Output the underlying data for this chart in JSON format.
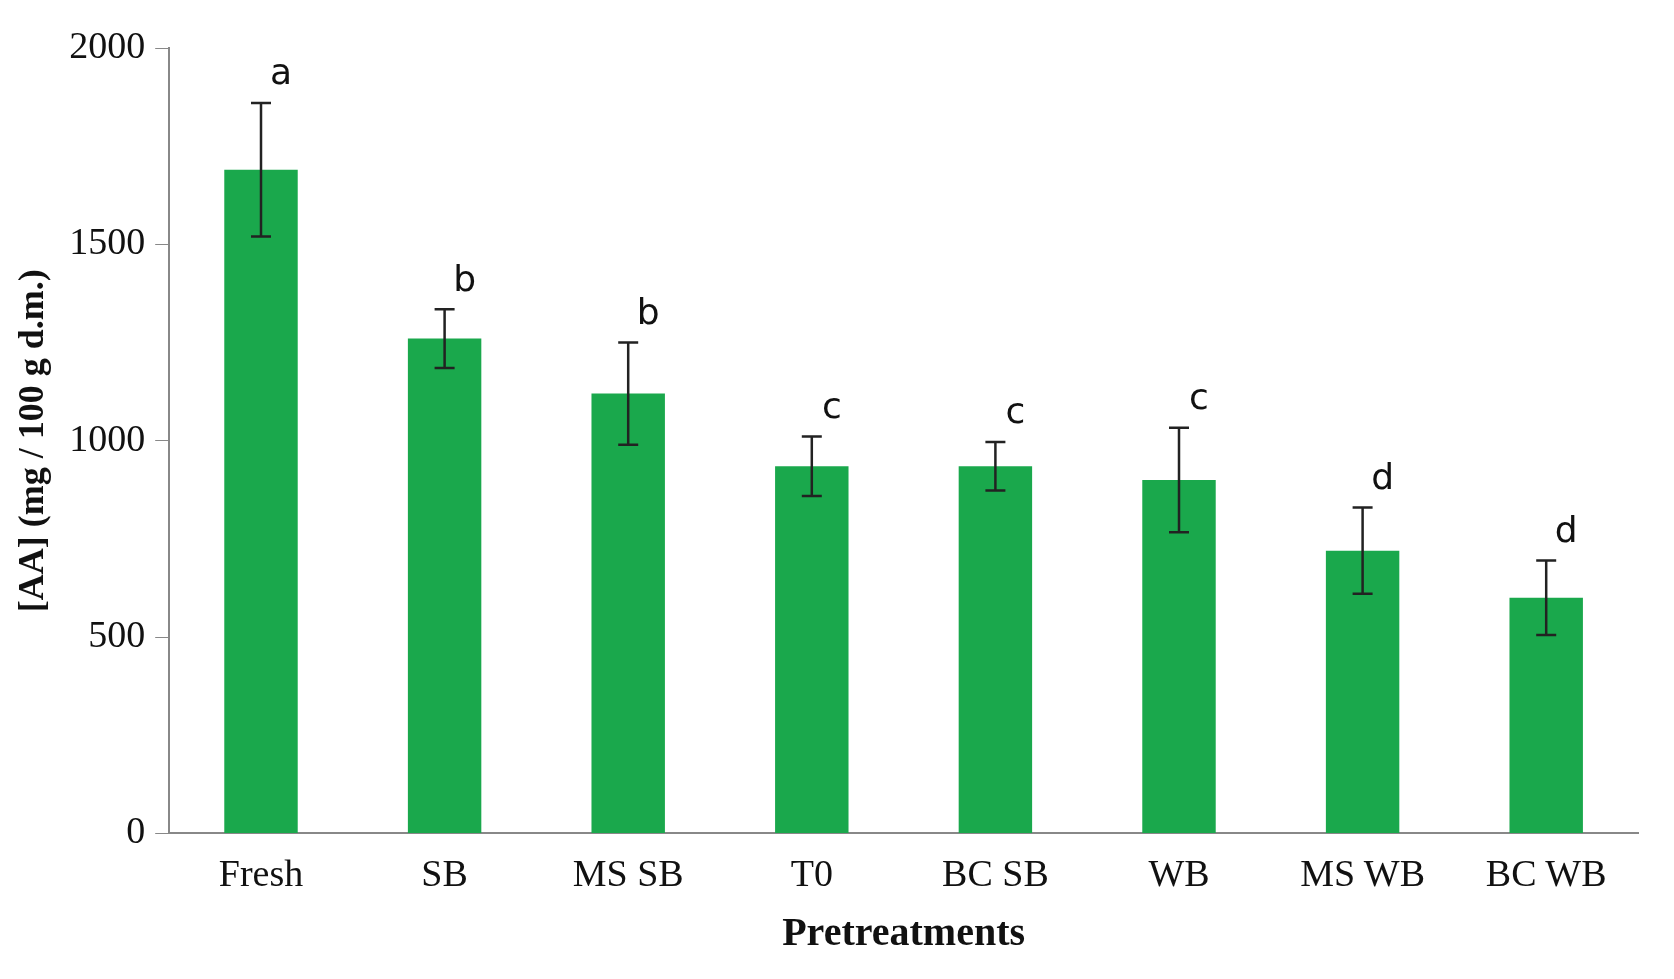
{
  "chart_data": {
    "type": "bar",
    "xlabel": "Pretreatments",
    "ylabel": "[AA] (mg / 100 g d.m.)",
    "categories": [
      "Fresh",
      "SB",
      "MS SB",
      "T0",
      "BC SB",
      "WB",
      "MS WB",
      "BC WB"
    ],
    "values": [
      1690,
      1260,
      1120,
      935,
      935,
      900,
      720,
      600
    ],
    "errors": [
      170,
      75,
      130,
      76,
      62,
      133,
      110,
      95
    ],
    "color": "#1aa84c",
    "ylim": [
      0,
      2000
    ],
    "yticks": [
      0,
      500,
      1000,
      1500,
      2000
    ],
    "grid": false,
    "annotations": [
      {
        "text": "a",
        "x": "Fresh",
        "y": 1860
      },
      {
        "text": "b",
        "x": "SB",
        "y": 1335
      },
      {
        "text": "b",
        "x": "MS SB",
        "y": 1250
      },
      {
        "text": "c",
        "x": "T0",
        "y": 1011
      },
      {
        "text": "c",
        "x": "BC SB",
        "y": 997
      },
      {
        "text": "c",
        "x": "WB",
        "y": 1033
      },
      {
        "text": "d",
        "x": "MS WB",
        "y": 830
      },
      {
        "text": "d",
        "x": "BC WB",
        "y": 695
      }
    ]
  }
}
